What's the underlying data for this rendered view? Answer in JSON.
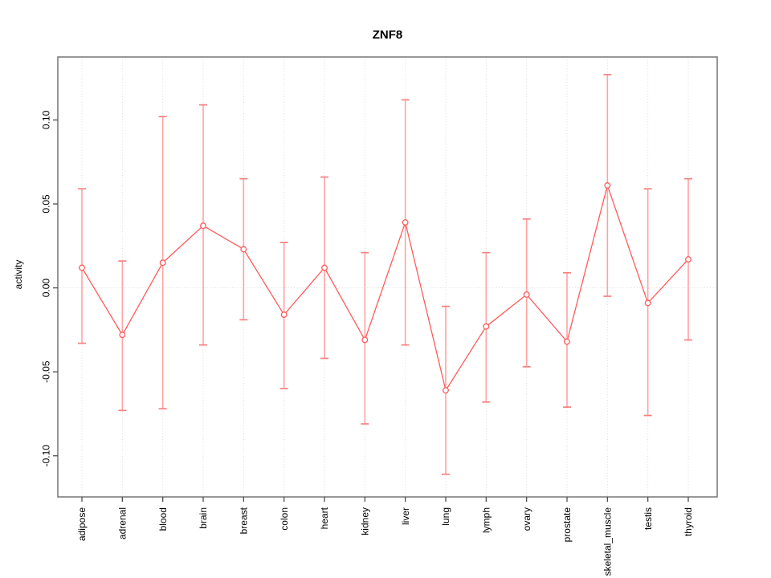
{
  "title": "ZNF8",
  "colors": {
    "series_line": "#ff5a5a",
    "point_stroke": "#ff5a5a",
    "point_fill": "#ffffff",
    "error_bar": "#ffa2a2",
    "error_cap": "#f88080",
    "gridline": "#d9d9d9",
    "frame": "#757575",
    "tick": "#4d4d4d",
    "text": "#000000",
    "background": "#ffffff"
  },
  "chart_data": {
    "type": "line",
    "title": "ZNF8",
    "xlabel": "",
    "ylabel": "activity",
    "legend": "none",
    "grid": "dotted vertical gridline at each category; dotted horizontal gridline at y=0",
    "categories": [
      "adipose",
      "adrenal",
      "blood",
      "brain",
      "breast",
      "colon",
      "heart",
      "kidney",
      "liver",
      "lung",
      "lymph",
      "ovary",
      "prostate",
      "skeletal_muscle",
      "testis",
      "thyroid"
    ],
    "series": [
      {
        "name": "activity",
        "values": [
          0.012,
          -0.028,
          0.015,
          0.037,
          0.023,
          -0.016,
          0.012,
          -0.031,
          0.039,
          -0.061,
          -0.023,
          -0.004,
          -0.032,
          0.061,
          -0.009,
          0.017
        ],
        "error_low": [
          -0.033,
          -0.073,
          -0.072,
          -0.034,
          -0.019,
          -0.06,
          -0.042,
          -0.081,
          -0.034,
          -0.111,
          -0.068,
          -0.047,
          -0.071,
          -0.005,
          -0.076,
          -0.031
        ],
        "error_high": [
          0.059,
          0.016,
          0.102,
          0.109,
          0.065,
          0.027,
          0.066,
          0.021,
          0.112,
          -0.011,
          0.021,
          0.041,
          0.009,
          0.127,
          0.059,
          0.065
        ]
      }
    ],
    "yticks": [
      -0.1,
      -0.05,
      0.0,
      0.05,
      0.1
    ],
    "ytick_labels": [
      "-0.10",
      "-0.05",
      "0.00",
      "0.05",
      "0.10"
    ],
    "ylim": [
      -0.1245,
      0.1375
    ]
  }
}
